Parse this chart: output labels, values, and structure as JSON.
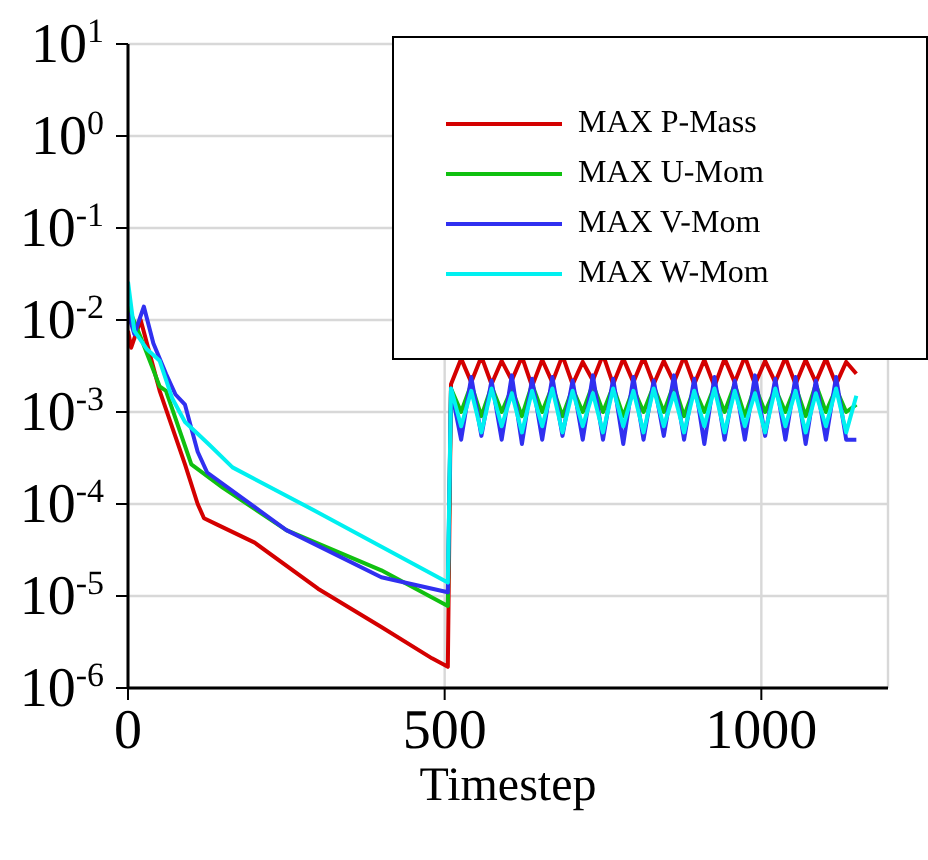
{
  "chart_data": {
    "type": "line",
    "xlabel": "Timestep",
    "log": "y",
    "grid": true,
    "legend": "top right",
    "marker": "none",
    "line_style": "solid",
    "xlim": [
      0,
      1200
    ],
    "xticks": [
      0,
      500,
      1000
    ],
    "ylim": [
      1e-06,
      10
    ],
    "yticks": [
      {
        "value": 1e-06,
        "label": "10$^{-6}$"
      },
      {
        "value": 1e-05,
        "label": "10$^{-5}$"
      },
      {
        "value": 0.0001,
        "label": "10$^{-4}$"
      },
      {
        "value": 0.001,
        "label": "10$^{-3}$"
      },
      {
        "value": 0.01,
        "label": "10$^{-2}$"
      },
      {
        "value": 0.1,
        "label": "10$^{-1}$"
      },
      {
        "value": 1,
        "label": "10$^{0}$"
      },
      {
        "value": 10,
        "label": "10$^{1}$"
      }
    ],
    "series": [
      {
        "name": "MAX P-Mass",
        "color": "#d40000",
        "x": [
          0,
          5,
          20,
          50,
          90,
          110,
          120,
          140,
          200,
          300,
          400,
          480,
          505,
          510,
          526,
          542,
          558,
          574,
          590,
          606,
          622,
          638,
          654,
          670,
          686,
          702,
          718,
          734,
          750,
          766,
          782,
          798,
          814,
          830,
          846,
          862,
          878,
          894,
          910,
          926,
          942,
          958,
          974,
          990,
          1006,
          1022,
          1038,
          1054,
          1070,
          1086,
          1102,
          1118,
          1134,
          1150
        ],
        "values": [
          0.0076,
          0.005,
          0.01,
          0.0017,
          0.00027,
          0.0001,
          7e-05,
          6e-05,
          3.8e-05,
          1.2e-05,
          4.6e-06,
          2.1e-06,
          1.7e-06,
          0.002,
          0.0038,
          0.0021,
          0.004,
          0.002,
          0.0036,
          0.0022,
          0.004,
          0.0019,
          0.0037,
          0.0021,
          0.0041,
          0.002,
          0.0035,
          0.0022,
          0.0042,
          0.002,
          0.0038,
          0.0021,
          0.0039,
          0.002,
          0.0036,
          0.0021,
          0.004,
          0.002,
          0.0037,
          0.0019,
          0.0038,
          0.0021,
          0.004,
          0.002,
          0.0036,
          0.0021,
          0.0039,
          0.002,
          0.0037,
          0.0021,
          0.0038,
          0.002,
          0.0035,
          0.0026
        ]
      },
      {
        "name": "MAX U-Mom",
        "color": "#10c010",
        "x": [
          0,
          20,
          50,
          60,
          100,
          150,
          250,
          400,
          505,
          510,
          526,
          542,
          558,
          574,
          590,
          606,
          622,
          638,
          654,
          670,
          686,
          702,
          718,
          734,
          750,
          766,
          782,
          798,
          814,
          830,
          846,
          862,
          878,
          894,
          910,
          926,
          942,
          958,
          974,
          990,
          1006,
          1022,
          1038,
          1054,
          1070,
          1086,
          1102,
          1118,
          1134,
          1150
        ],
        "values": [
          0.014,
          0.0065,
          0.0019,
          0.0017,
          0.00027,
          0.00015,
          5.2e-05,
          1.9e-05,
          7.8e-06,
          0.0018,
          0.001,
          0.002,
          0.0009,
          0.0019,
          0.001,
          0.0018,
          0.0009,
          0.002,
          0.001,
          0.0019,
          0.0009,
          0.0018,
          0.001,
          0.002,
          0.001,
          0.0019,
          0.0009,
          0.0018,
          0.001,
          0.0019,
          0.001,
          0.002,
          0.0009,
          0.0018,
          0.001,
          0.0019,
          0.001,
          0.002,
          0.0009,
          0.0019,
          0.001,
          0.0018,
          0.001,
          0.0019,
          0.0009,
          0.002,
          0.001,
          0.0018,
          0.001,
          0.0012
        ]
      },
      {
        "name": "MAX V-Mom",
        "color": "#3030f0",
        "x": [
          0,
          10,
          25,
          40,
          60,
          75,
          90,
          110,
          125,
          250,
          400,
          505,
          510,
          526,
          542,
          558,
          574,
          590,
          606,
          622,
          638,
          654,
          670,
          686,
          702,
          718,
          734,
          750,
          766,
          782,
          798,
          814,
          830,
          846,
          862,
          878,
          894,
          910,
          926,
          942,
          958,
          974,
          990,
          1006,
          1022,
          1038,
          1054,
          1070,
          1086,
          1102,
          1118,
          1134,
          1150
        ],
        "values": [
          0.012,
          0.007,
          0.014,
          0.0056,
          0.0026,
          0.00155,
          0.0012,
          0.00037,
          0.00022,
          5.2e-05,
          1.6e-05,
          1.1e-05,
          0.0018,
          0.0005,
          0.0024,
          0.00055,
          0.0022,
          0.0005,
          0.0025,
          0.00045,
          0.0023,
          0.0005,
          0.0024,
          0.00055,
          0.0022,
          0.0005,
          0.0025,
          0.0005,
          0.0023,
          0.00045,
          0.0024,
          0.0005,
          0.0022,
          0.00055,
          0.0025,
          0.0005,
          0.0023,
          0.00045,
          0.0024,
          0.0005,
          0.0022,
          0.0005,
          0.0025,
          0.00055,
          0.0023,
          0.0005,
          0.0024,
          0.00045,
          0.0022,
          0.0005,
          0.0024,
          0.0005,
          0.0005
        ]
      },
      {
        "name": "MAX W-Mom",
        "color": "#00f0f0",
        "x": [
          0,
          10,
          30,
          50,
          70,
          90,
          110,
          130,
          165,
          300,
          505,
          510,
          526,
          542,
          558,
          574,
          590,
          606,
          622,
          638,
          654,
          670,
          686,
          702,
          718,
          734,
          750,
          766,
          782,
          798,
          814,
          830,
          846,
          862,
          878,
          894,
          910,
          926,
          942,
          958,
          974,
          990,
          1006,
          1022,
          1038,
          1054,
          1070,
          1086,
          1102,
          1118,
          1134,
          1150
        ],
        "values": [
          0.026,
          0.0076,
          0.0048,
          0.0036,
          0.0014,
          0.00078,
          0.00058,
          0.00043,
          0.00025,
          8.1e-05,
          1.4e-05,
          0.0018,
          0.0007,
          0.0017,
          0.0006,
          0.0018,
          0.0007,
          0.0016,
          0.0006,
          0.0017,
          0.0007,
          0.0018,
          0.0006,
          0.0017,
          0.0007,
          0.0016,
          0.0006,
          0.0018,
          0.0007,
          0.0017,
          0.0006,
          0.0018,
          0.0007,
          0.0016,
          0.0006,
          0.0017,
          0.0007,
          0.0018,
          0.0006,
          0.0017,
          0.0007,
          0.0016,
          0.0006,
          0.0018,
          0.0007,
          0.0017,
          0.0006,
          0.0016,
          0.0007,
          0.0018,
          0.0006,
          0.0015
        ]
      }
    ]
  }
}
